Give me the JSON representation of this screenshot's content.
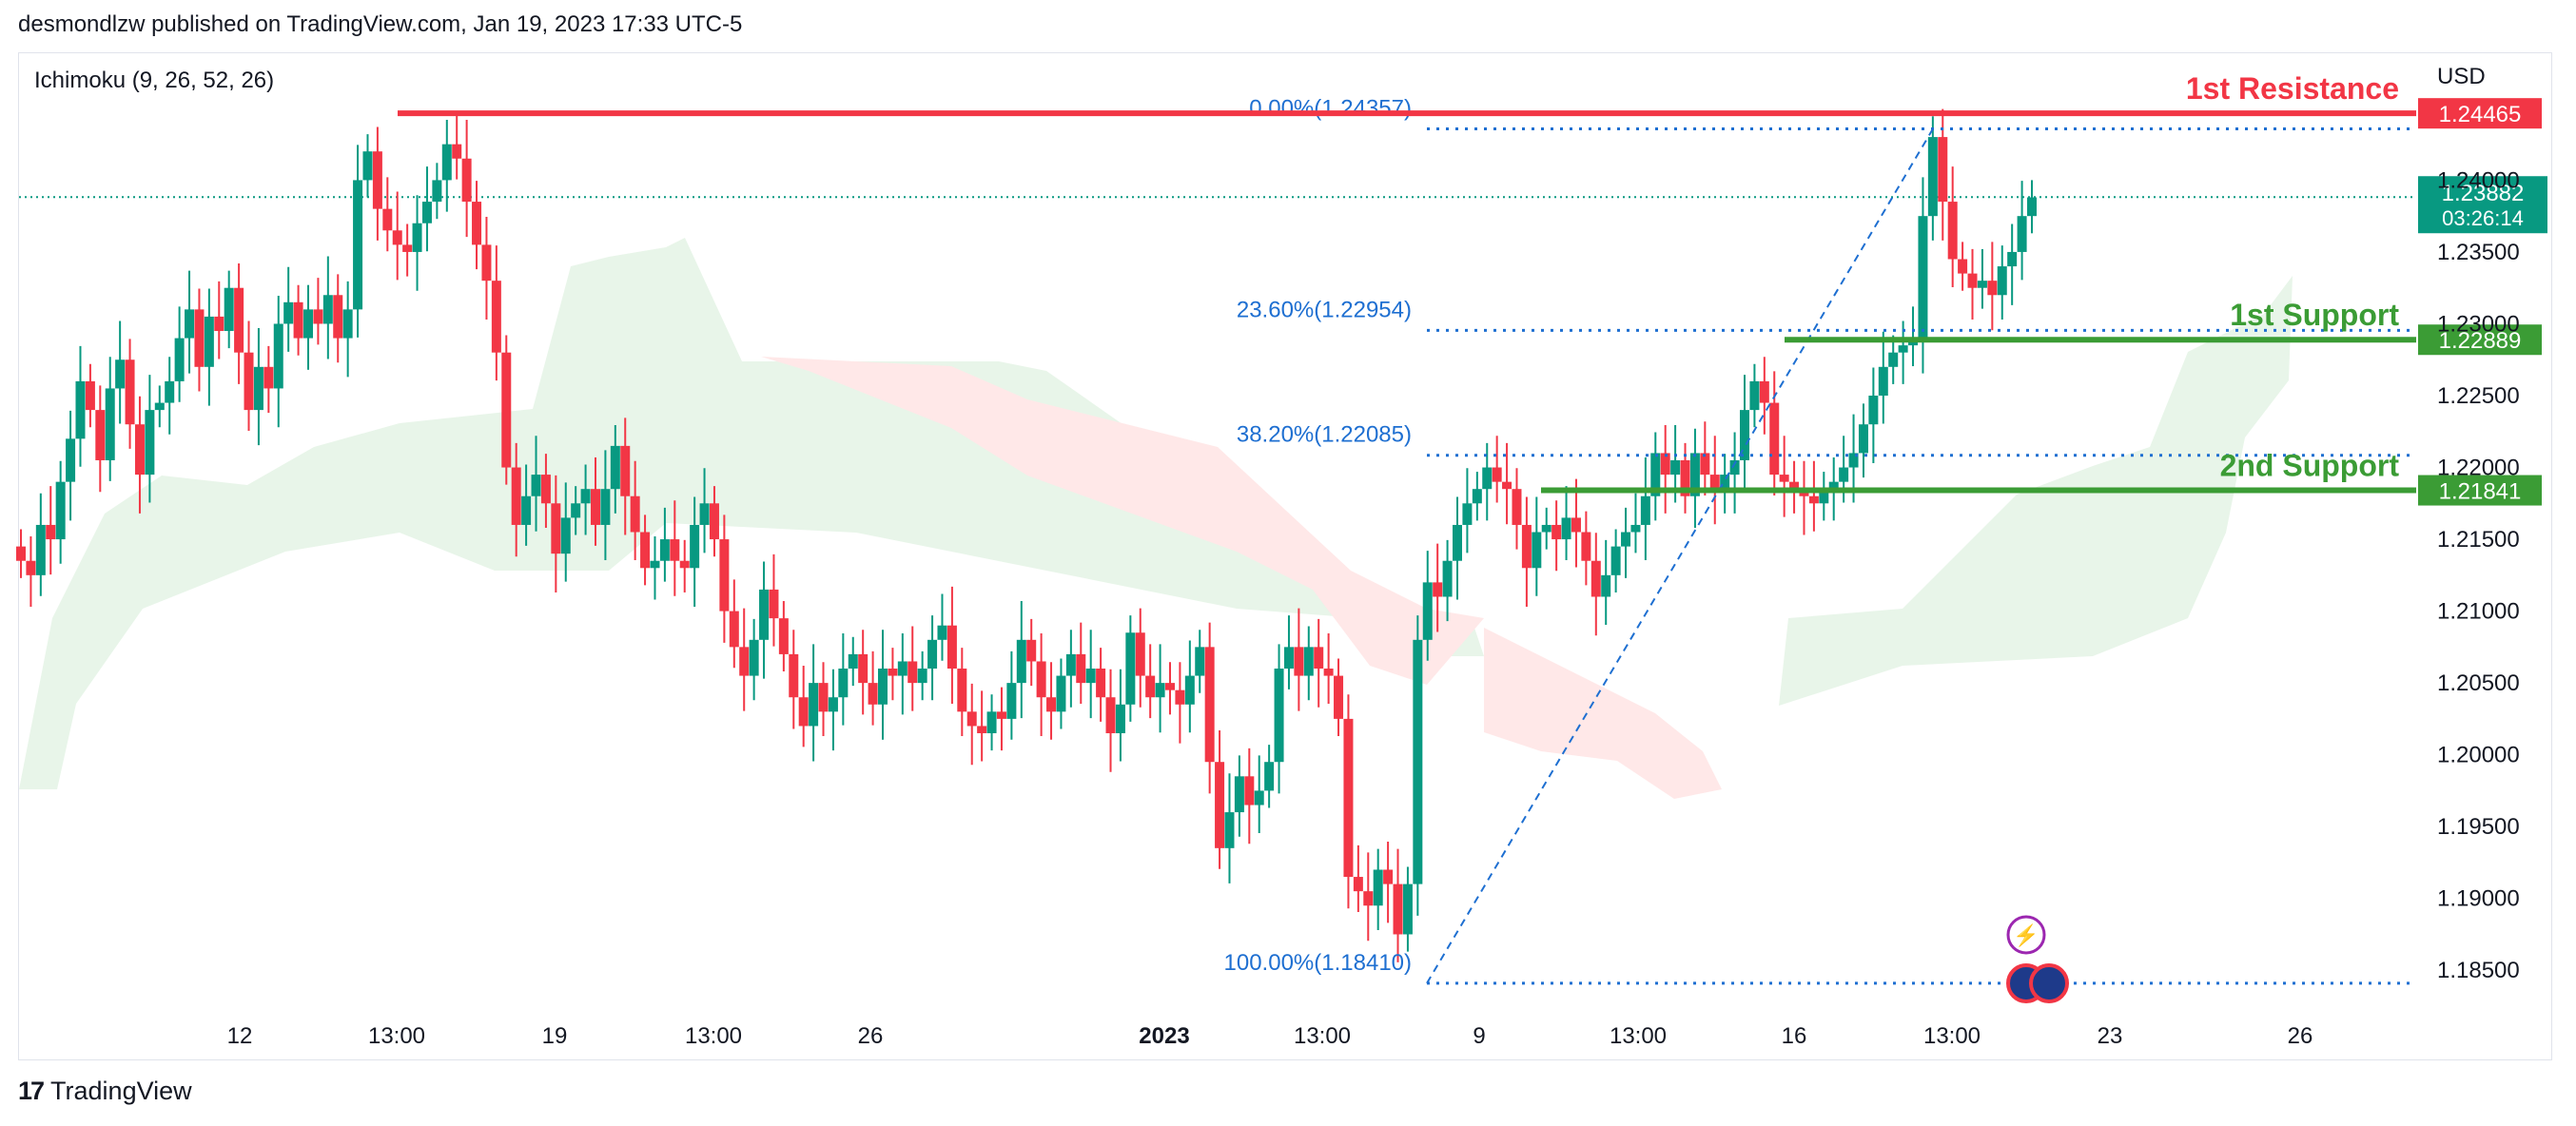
{
  "header": {
    "published": "desmondlzw published on TradingView.com, Jan 19, 2023 17:33 UTC-5"
  },
  "footer": {
    "brand": "TradingView",
    "logo_icon": "tradingview-logo-icon"
  },
  "colors": {
    "up": "#089981",
    "down": "#f23645",
    "resistance": "#f23645",
    "support": "#3b9c35",
    "fib": "#1e6fd1",
    "kumo_bull": "#e8f5e9",
    "kumo_bear": "#ffe8e8",
    "price_badge": "#089981"
  },
  "chart_data": {
    "type": "candlestick",
    "indicator_label": "Ichimoku (9, 26, 52, 26)",
    "currency": "USD",
    "y_axis": {
      "ticks": [
        "1.18500",
        "1.19000",
        "1.19500",
        "1.20000",
        "1.20500",
        "1.21000",
        "1.21500",
        "1.22000",
        "1.22500",
        "1.23000",
        "1.23500",
        "1.24000"
      ],
      "range": [
        1.1825,
        1.2487
      ]
    },
    "x_axis": {
      "ticks": [
        "12",
        "13:00",
        "19",
        "13:00",
        "26",
        "2023",
        "13:00",
        "9",
        "13:00",
        "16",
        "13:00",
        "23",
        "26"
      ],
      "bold_tick": "2023"
    },
    "levels": [
      {
        "label": "1st Resistance",
        "value": "1.24465",
        "kind": "resistance"
      },
      {
        "label": "1st Support",
        "value": "1.22889",
        "kind": "support"
      },
      {
        "label": "2nd Support",
        "value": "1.21841",
        "kind": "support"
      }
    ],
    "fibonacci": [
      {
        "label": "0.00%(1.24357)",
        "value": 1.24357
      },
      {
        "label": "23.60%(1.22954)",
        "value": 1.22954
      },
      {
        "label": "38.20%(1.22085)",
        "value": 1.22085
      },
      {
        "label": "100.00%(1.18410)",
        "value": 1.1841
      }
    ],
    "current_price": {
      "value": "1.23882",
      "countdown": "03:26:14"
    },
    "closes": [
      1.2135,
      1.2125,
      1.216,
      1.215,
      1.219,
      1.222,
      1.226,
      1.224,
      1.2205,
      1.2255,
      1.2275,
      1.223,
      1.2195,
      1.224,
      1.2245,
      1.226,
      1.229,
      1.231,
      1.227,
      1.2305,
      1.2295,
      1.2325,
      1.228,
      1.224,
      1.227,
      1.2255,
      1.23,
      1.2315,
      1.229,
      1.231,
      1.23,
      1.232,
      1.229,
      1.231,
      1.24,
      1.242,
      1.238,
      1.2365,
      1.2355,
      1.235,
      1.237,
      1.2385,
      1.24,
      1.2425,
      1.2415,
      1.2385,
      1.2355,
      1.233,
      1.228,
      1.22,
      1.216,
      1.218,
      1.2195,
      1.2175,
      1.214,
      1.2165,
      1.2175,
      1.2185,
      1.216,
      1.2185,
      1.2215,
      1.218,
      1.2155,
      1.213,
      1.2135,
      1.215,
      1.2135,
      1.213,
      1.216,
      1.2175,
      1.215,
      1.21,
      1.2075,
      1.2055,
      1.208,
      1.2115,
      1.2095,
      1.207,
      1.204,
      1.202,
      1.205,
      1.203,
      1.204,
      1.206,
      1.207,
      1.205,
      1.2035,
      1.206,
      1.2055,
      1.2065,
      1.205,
      1.206,
      1.208,
      1.209,
      1.206,
      1.203,
      1.202,
      1.2015,
      1.203,
      1.2025,
      1.205,
      1.208,
      1.2065,
      1.204,
      1.203,
      1.2055,
      1.207,
      1.205,
      1.206,
      1.204,
      1.2015,
      1.2035,
      1.2085,
      1.2055,
      1.204,
      1.205,
      1.2045,
      1.2035,
      1.2055,
      1.2075,
      1.1995,
      1.1935,
      1.196,
      1.1985,
      1.1965,
      1.1975,
      1.1995,
      1.206,
      1.2075,
      1.2055,
      1.2075,
      1.206,
      1.2055,
      1.2025,
      1.1915,
      1.1905,
      1.1895,
      1.192,
      1.191,
      1.1875,
      1.191,
      1.208,
      1.212,
      1.211,
      1.2135,
      1.216,
      1.2175,
      1.2185,
      1.22,
      1.219,
      1.2185,
      1.216,
      1.213,
      1.2155,
      1.216,
      1.215,
      1.2165,
      1.2155,
      1.2135,
      1.211,
      1.2125,
      1.2145,
      1.2155,
      1.216,
      1.218,
      1.221,
      1.2195,
      1.2205,
      1.218,
      1.221,
      1.2195,
      1.2185,
      1.2195,
      1.2205,
      1.224,
      1.226,
      1.2245,
      1.2195,
      1.219,
      1.2185,
      1.218,
      1.2175,
      1.2185,
      1.219,
      1.22,
      1.221,
      1.223,
      1.225,
      1.227,
      1.228,
      1.2285,
      1.229,
      1.2375,
      1.243,
      1.2385,
      1.2345,
      1.2335,
      1.2325,
      1.233,
      1.232,
      1.234,
      1.235,
      1.2375,
      1.2388
    ]
  }
}
